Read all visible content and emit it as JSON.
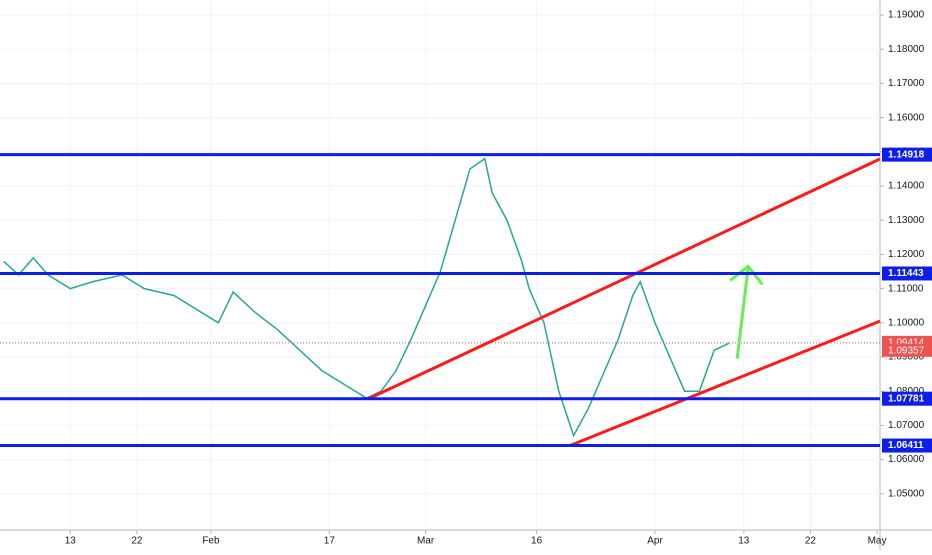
{
  "chart_data": {
    "type": "line",
    "x": [
      4,
      6,
      8,
      10,
      13,
      16,
      20,
      23,
      27,
      30,
      33,
      35,
      38,
      41,
      44,
      47,
      50,
      53,
      55,
      57,
      59,
      61,
      63,
      65,
      67,
      69,
      70,
      72,
      74,
      75,
      77,
      79,
      81,
      83,
      85,
      87,
      89,
      90,
      92,
      94,
      96,
      98,
      100,
      102
    ],
    "series": [
      {
        "color": "#26a69a",
        "values": [
          1.118,
          1.114,
          1.119,
          1.114,
          1.11,
          1.112,
          1.114,
          1.11,
          1.108,
          1.104,
          1.1,
          1.109,
          1.103,
          1.098,
          1.092,
          1.086,
          1.082,
          1.078,
          1.08,
          1.086,
          1.095,
          1.105,
          1.115,
          1.13,
          1.145,
          1.148,
          1.138,
          1.13,
          1.118,
          1.11,
          1.1,
          1.08,
          1.067,
          1.075,
          1.085,
          1.095,
          1.108,
          1.112,
          1.1,
          1.09,
          1.08,
          1.08,
          1.092,
          1.094
        ]
      }
    ],
    "xlim": [
      3.5,
      122.4
    ],
    "xticks": [
      {
        "value": 13,
        "label": "13"
      },
      {
        "value": 22,
        "label": "22"
      },
      {
        "value": 32,
        "label": "Feb"
      },
      {
        "value": 48,
        "label": "17"
      },
      {
        "value": 61,
        "label": "Mar"
      },
      {
        "value": 76,
        "label": "16"
      },
      {
        "value": 92,
        "label": "Apr"
      },
      {
        "value": 104,
        "label": "13"
      },
      {
        "value": 113,
        "label": "22"
      },
      {
        "value": 122,
        "label": "May"
      }
    ],
    "ylim": [
      1.04,
      1.1944
    ],
    "yticks": [
      {
        "value": 1.19,
        "label": "1.19000"
      },
      {
        "value": 1.18,
        "label": "1.18000"
      },
      {
        "value": 1.17,
        "label": "1.17000"
      },
      {
        "value": 1.16,
        "label": "1.16000"
      },
      {
        "value": 1.15,
        "label": "1.15000"
      },
      {
        "value": 1.14,
        "label": "1.14000"
      },
      {
        "value": 1.13,
        "label": "1.13000"
      },
      {
        "value": 1.12,
        "label": "1.12000"
      },
      {
        "value": 1.11,
        "label": "1.11000"
      },
      {
        "value": 1.1,
        "label": "1.10000"
      },
      {
        "value": 1.09,
        "label": "1.09000"
      },
      {
        "value": 1.08,
        "label": "1.08000"
      },
      {
        "value": 1.07,
        "label": "1.07000"
      },
      {
        "value": 1.06,
        "label": "1.06000"
      },
      {
        "value": 1.05,
        "label": "1.05000"
      }
    ],
    "levels": [
      {
        "value": 1.14918,
        "label": "1.14918",
        "color": "#0d1ee8"
      },
      {
        "value": 1.11443,
        "label": "1.11443",
        "color": "#0d1ee8"
      },
      {
        "value": 1.07781,
        "label": "1.07781",
        "color": "#0d1ee8"
      },
      {
        "value": 1.06411,
        "label": "1.06411",
        "color": "#0d1ee8"
      }
    ],
    "price_labels": [
      {
        "value": 1.09414,
        "label": "1.09414",
        "color": "#ef5350"
      },
      {
        "value": 1.09357,
        "label": "1.09357",
        "color": "#ef5350"
      }
    ],
    "trend_lines": [
      {
        "color": "#ff1a1a",
        "x": [
          53.3,
          122.4
        ],
        "values": [
          1.0778,
          1.1479
        ]
      },
      {
        "color": "#ff1a1a",
        "x": [
          80.5,
          122.4
        ],
        "values": [
          1.0641,
          1.1005
        ]
      },
      {
        "color": "#66ee55",
        "x": [
          103.1,
          104.6
        ],
        "values": [
          1.0895,
          1.1165
        ]
      }
    ],
    "grid": true
  }
}
